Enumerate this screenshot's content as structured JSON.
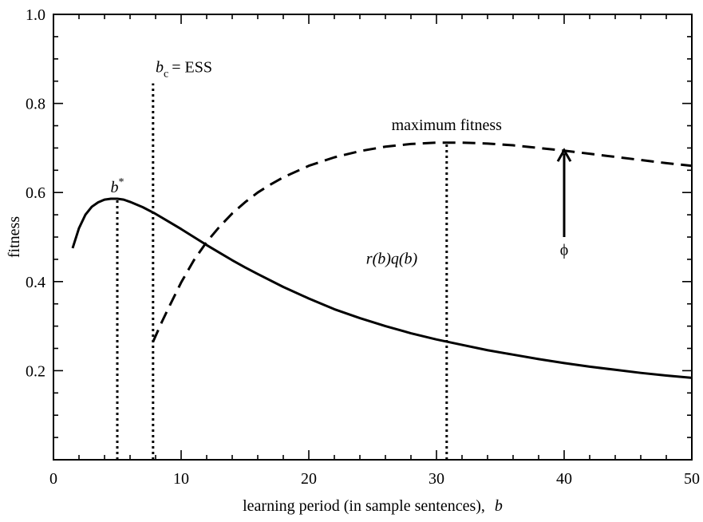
{
  "chart_data": {
    "type": "line",
    "title": "",
    "xlabel": "learning period (in sample sentences),",
    "xlabel_var": "b",
    "ylabel": "fitness",
    "xlim": [
      0,
      50
    ],
    "ylim": [
      0,
      1.0
    ],
    "x_ticks": [
      0,
      10,
      20,
      30,
      40,
      50
    ],
    "y_ticks": [
      0.2,
      0.4,
      0.6,
      0.8,
      1.0
    ],
    "x_tick_labels": [
      "0",
      "10",
      "20",
      "30",
      "40",
      "50"
    ],
    "y_tick_labels": [
      "0.2",
      "0.4",
      "0.6",
      "0.8",
      "1.0"
    ],
    "grid": false,
    "series": [
      {
        "style": "solid",
        "label": "r(b)q(b)",
        "x": [
          1.5,
          2,
          2.5,
          3,
          3.5,
          4,
          4.5,
          5,
          5.5,
          6,
          6.5,
          7,
          8,
          9,
          10,
          11,
          12,
          13,
          14,
          15,
          16,
          18,
          20,
          22,
          24,
          26,
          28,
          30,
          32,
          34,
          36,
          38,
          40,
          42,
          44,
          46,
          48,
          50
        ],
        "y": [
          0.475,
          0.52,
          0.55,
          0.568,
          0.578,
          0.584,
          0.586,
          0.586,
          0.584,
          0.579,
          0.573,
          0.567,
          0.552,
          0.535,
          0.518,
          0.5,
          0.482,
          0.465,
          0.448,
          0.432,
          0.417,
          0.388,
          0.362,
          0.338,
          0.318,
          0.3,
          0.284,
          0.27,
          0.258,
          0.246,
          0.236,
          0.226,
          0.217,
          0.209,
          0.202,
          0.195,
          0.189,
          0.184
        ]
      },
      {
        "style": "dashed",
        "x": [
          7.8,
          8.5,
          9,
          10,
          11,
          12,
          13,
          14,
          15,
          16,
          17,
          18,
          20,
          22,
          24,
          26,
          28,
          30,
          32,
          34,
          36,
          38,
          40,
          42,
          44,
          46,
          48,
          50
        ],
        "y": [
          0.265,
          0.31,
          0.34,
          0.398,
          0.448,
          0.489,
          0.523,
          0.553,
          0.578,
          0.6,
          0.618,
          0.634,
          0.66,
          0.679,
          0.693,
          0.703,
          0.709,
          0.712,
          0.712,
          0.71,
          0.706,
          0.7,
          0.694,
          0.687,
          0.68,
          0.673,
          0.666,
          0.66
        ]
      }
    ],
    "vlines": [
      {
        "name": "b-star",
        "x": 5.0,
        "y_top": 0.586
      },
      {
        "name": "b-c-ess",
        "x": 7.8,
        "y_top": 0.845
      },
      {
        "name": "maximum-fitness",
        "x": 30.8,
        "y_top": 0.712
      }
    ],
    "arrow": {
      "x": 40,
      "y_from": 0.5,
      "y_to": 0.695
    },
    "annotations": {
      "b_star": {
        "base": "b",
        "sup": "*",
        "x": 5.0,
        "y": 0.6
      },
      "b_c": {
        "base": "b",
        "sub": "c",
        "rest": "= ESS",
        "x": 8.0,
        "y": 0.87
      },
      "max_fitness": {
        "text": "maximum fitness",
        "x": 30.8,
        "y": 0.74
      },
      "phi": {
        "text": "ϕ",
        "x": 40,
        "y": 0.46
      },
      "rq": {
        "text": "r(b)q(b)",
        "x": 26.5,
        "y": 0.44
      }
    }
  }
}
